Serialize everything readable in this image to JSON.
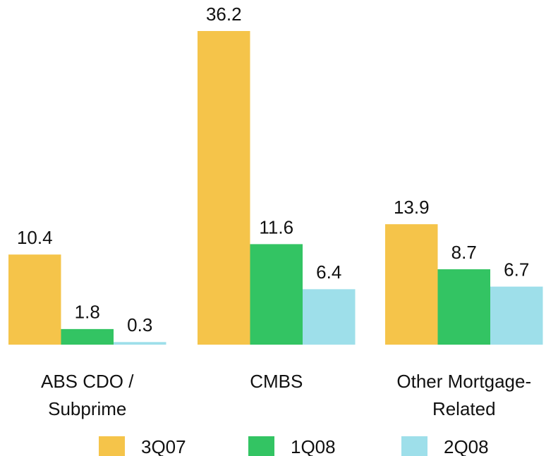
{
  "chart_data": {
    "type": "bar",
    "categories": [
      "ABS CDO /\nSubprime",
      "CMBS",
      "Other Mortgage-\nRelated"
    ],
    "series": [
      {
        "name": "3Q07",
        "color": "#f5c44a",
        "values": [
          10.4,
          36.2,
          13.9
        ]
      },
      {
        "name": "1Q08",
        "color": "#33c463",
        "values": [
          1.8,
          11.6,
          8.7
        ]
      },
      {
        "name": "2Q08",
        "color": "#9edfea",
        "values": [
          0.3,
          6.4,
          6.7
        ]
      }
    ]
  }
}
